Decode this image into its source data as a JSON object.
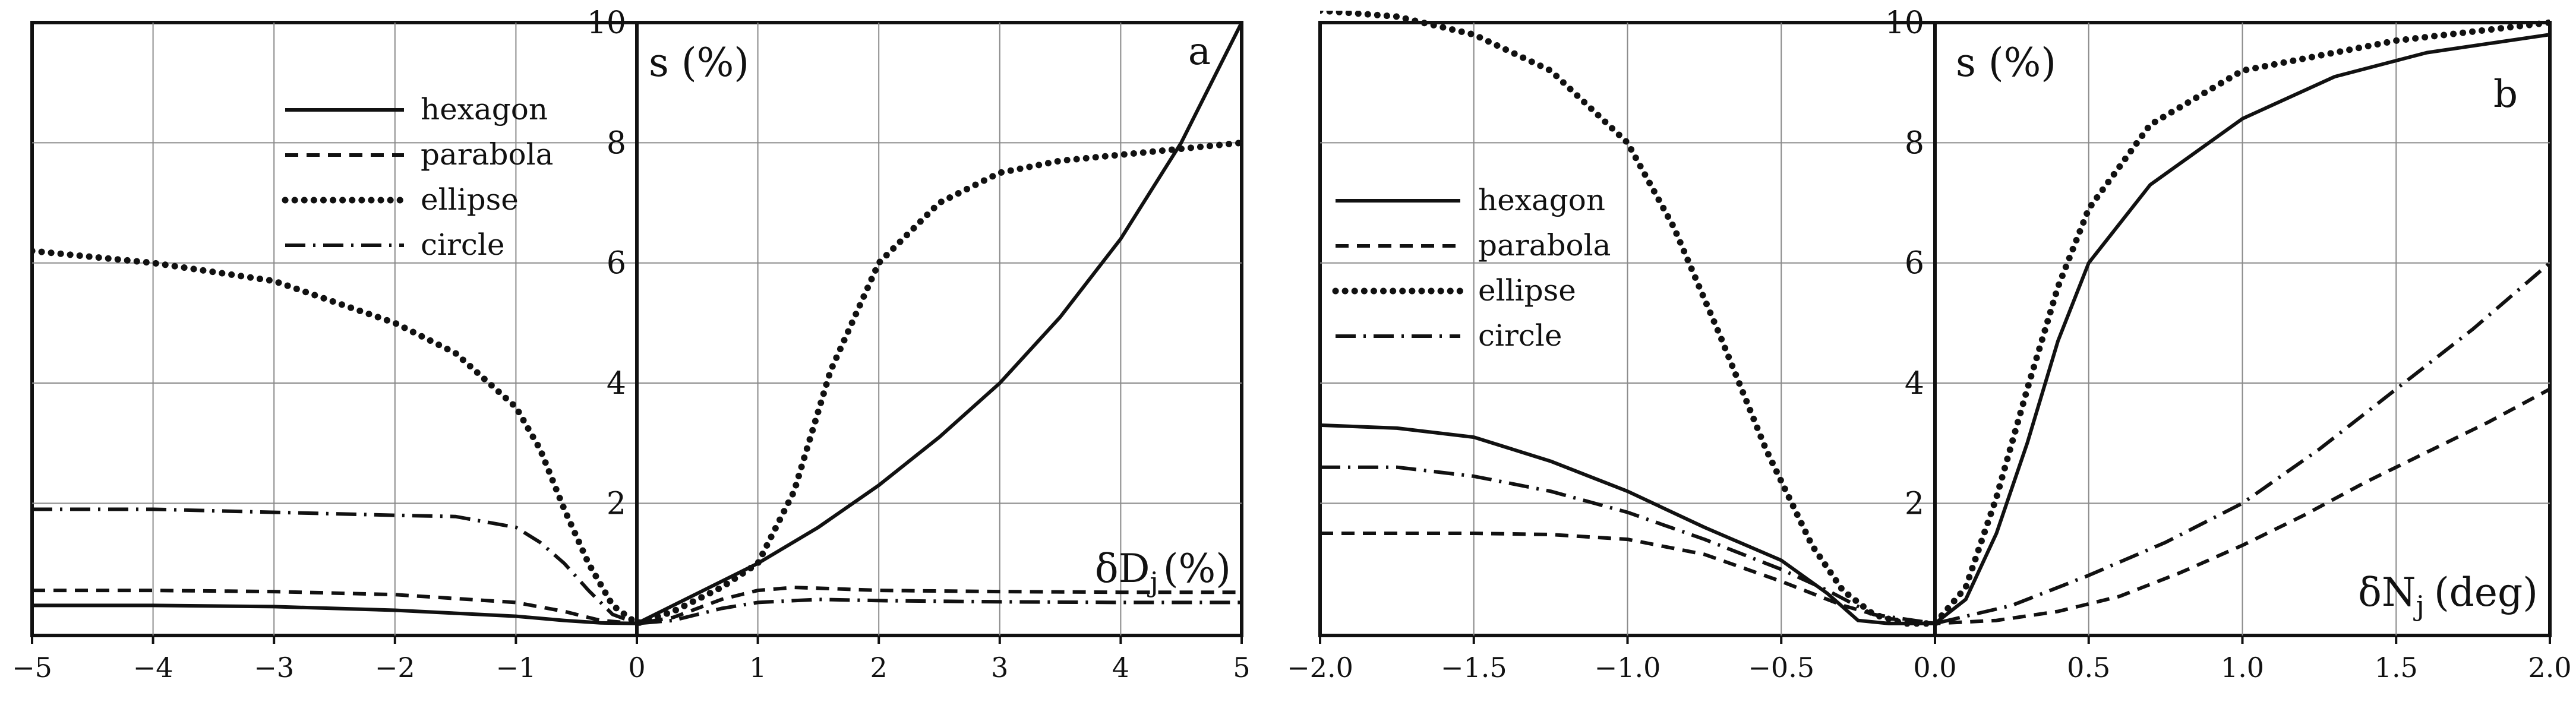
{
  "chart_data": [
    {
      "type": "line",
      "panel_label": "a",
      "ylabel": "s (%)",
      "xlabel_main": "δD",
      "xlabel_sub": "j",
      "xlabel_unit": "(%)",
      "xlim": [
        -5,
        5
      ],
      "ylim": [
        -0.2,
        10
      ],
      "grid": true,
      "legend_position": "top-left",
      "x_ticks": [
        -5,
        -4,
        -3,
        -2,
        -1,
        0,
        1,
        2,
        3,
        4,
        5
      ],
      "x_tick_labels": [
        "−5",
        "−4",
        "−3",
        "−2",
        "−1",
        "0",
        "1",
        "2",
        "3",
        "4",
        "5"
      ],
      "y_ticks": [
        2,
        4,
        6,
        8,
        10
      ],
      "y_tick_labels": [
        "2",
        "4",
        "6",
        "8",
        "10"
      ],
      "series": [
        {
          "name": "hexagon",
          "style": "solid",
          "x": [
            -5,
            -4,
            -3,
            -2,
            -1,
            -0.6,
            -0.3,
            0,
            0.5,
            1,
            1.5,
            2,
            2.5,
            3,
            3.5,
            4,
            4.5,
            5
          ],
          "y": [
            0.3,
            0.3,
            0.28,
            0.22,
            0.12,
            0.05,
            0.01,
            0,
            0.5,
            1.0,
            1.6,
            2.3,
            3.1,
            4.0,
            5.1,
            6.4,
            8.0,
            10.0
          ]
        },
        {
          "name": "parabola",
          "style": "dashed",
          "x": [
            -5,
            -4,
            -3,
            -2,
            -1,
            -0.6,
            -0.3,
            0,
            0.3,
            0.7,
            1,
            1.3,
            1.6,
            2,
            3,
            4,
            5
          ],
          "y": [
            0.55,
            0.55,
            0.53,
            0.48,
            0.35,
            0.2,
            0.05,
            0,
            0.1,
            0.4,
            0.55,
            0.6,
            0.58,
            0.55,
            0.53,
            0.52,
            0.52
          ]
        },
        {
          "name": "ellipse",
          "style": "dotted",
          "x": [
            -5,
            -4,
            -3,
            -2,
            -1.5,
            -1,
            -0.8,
            -0.6,
            -0.4,
            -0.2,
            0,
            0.3,
            0.7,
            1,
            1.3,
            1.6,
            2,
            2.5,
            3,
            3.5,
            4,
            5
          ],
          "y": [
            6.2,
            6.0,
            5.7,
            5.0,
            4.5,
            3.6,
            2.9,
            1.9,
            1.0,
            0.3,
            0,
            0.2,
            0.6,
            1.0,
            2.2,
            4.2,
            6.0,
            7.0,
            7.5,
            7.7,
            7.8,
            8.0
          ]
        },
        {
          "name": "circle",
          "style": "dashdot",
          "x": [
            -5,
            -4,
            -3,
            -2,
            -1.5,
            -1,
            -0.8,
            -0.6,
            -0.4,
            -0.2,
            0,
            0.3,
            0.7,
            1,
            1.5,
            2,
            3,
            4,
            5
          ],
          "y": [
            1.9,
            1.9,
            1.85,
            1.8,
            1.78,
            1.6,
            1.35,
            1.0,
            0.55,
            0.15,
            0,
            0.05,
            0.25,
            0.35,
            0.4,
            0.38,
            0.36,
            0.35,
            0.35
          ]
        }
      ]
    },
    {
      "type": "line",
      "panel_label": "b",
      "ylabel": "s (%)",
      "xlabel_main": "δN",
      "xlabel_sub": "j",
      "xlabel_unit": "(deg)",
      "xlim": [
        -2.0,
        2.0
      ],
      "ylim": [
        -0.2,
        10
      ],
      "grid": true,
      "legend_position": "middle-left",
      "x_ticks": [
        -2.0,
        -1.5,
        -1.0,
        -0.5,
        0.0,
        0.5,
        1.0,
        1.5,
        2.0
      ],
      "x_tick_labels": [
        "−2.0",
        "−1.5",
        "−1.0",
        "−0.5",
        "0.0",
        "0.5",
        "1.0",
        "1.5",
        "2.0"
      ],
      "y_ticks": [
        2,
        4,
        6,
        8,
        10
      ],
      "y_tick_labels": [
        "2",
        "4",
        "6",
        "8",
        "10"
      ],
      "series": [
        {
          "name": "hexagon",
          "style": "solid",
          "x": [
            -2.0,
            -1.75,
            -1.5,
            -1.25,
            -1.0,
            -0.75,
            -0.5,
            -0.35,
            -0.25,
            -0.15,
            0,
            0.1,
            0.2,
            0.3,
            0.4,
            0.5,
            0.7,
            1.0,
            1.3,
            1.6,
            2.0
          ],
          "y": [
            3.3,
            3.25,
            3.1,
            2.7,
            2.2,
            1.6,
            1.05,
            0.5,
            0.05,
            0,
            0,
            0.4,
            1.5,
            3.0,
            4.7,
            6.0,
            7.3,
            8.4,
            9.1,
            9.5,
            9.8
          ]
        },
        {
          "name": "parabola",
          "style": "dashed",
          "x": [
            -2.0,
            -1.75,
            -1.5,
            -1.25,
            -1.0,
            -0.75,
            -0.5,
            -0.3,
            -0.15,
            0,
            0.2,
            0.4,
            0.6,
            0.8,
            1.0,
            1.2,
            1.4,
            1.6,
            1.8,
            2.0
          ],
          "y": [
            1.5,
            1.5,
            1.5,
            1.48,
            1.4,
            1.15,
            0.7,
            0.3,
            0.08,
            0,
            0.05,
            0.2,
            0.45,
            0.85,
            1.3,
            1.8,
            2.35,
            2.85,
            3.35,
            3.9
          ]
        },
        {
          "name": "ellipse",
          "style": "dotted",
          "x": [
            -2.0,
            -1.75,
            -1.5,
            -1.25,
            -1.0,
            -0.85,
            -0.7,
            -0.55,
            -0.4,
            -0.3,
            -0.2,
            -0.1,
            0,
            0.1,
            0.2,
            0.3,
            0.4,
            0.5,
            0.7,
            1.0,
            1.5,
            2.0
          ],
          "y": [
            10.2,
            10.1,
            9.8,
            9.2,
            8.0,
            6.6,
            4.8,
            2.9,
            1.3,
            0.55,
            0.15,
            0,
            0,
            0.6,
            2.1,
            3.9,
            5.6,
            6.9,
            8.3,
            9.2,
            9.7,
            10.0
          ]
        },
        {
          "name": "circle",
          "style": "dashdot",
          "x": [
            -2.0,
            -1.75,
            -1.5,
            -1.25,
            -1.0,
            -0.75,
            -0.5,
            -0.35,
            -0.2,
            0,
            0.25,
            0.5,
            0.75,
            1.0,
            1.25,
            1.5,
            1.75,
            2.0
          ],
          "y": [
            2.6,
            2.6,
            2.45,
            2.2,
            1.85,
            1.4,
            0.9,
            0.55,
            0.15,
            0,
            0.3,
            0.8,
            1.35,
            2.0,
            2.9,
            3.9,
            4.9,
            6.0
          ]
        }
      ]
    }
  ]
}
